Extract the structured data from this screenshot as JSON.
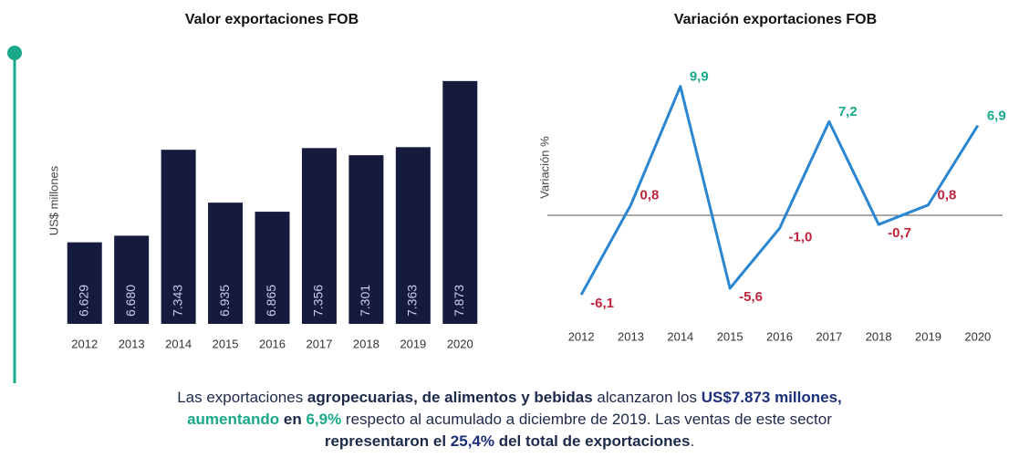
{
  "chart_data": [
    {
      "type": "bar",
      "title": "Valor exportaciones FOB",
      "y_label": "US$ millones",
      "categories": [
        "2012",
        "2013",
        "2014",
        "2015",
        "2016",
        "2017",
        "2018",
        "2019",
        "2020"
      ],
      "values": [
        6629,
        6680,
        7343,
        6935,
        6865,
        7356,
        7301,
        7363,
        7873
      ],
      "value_labels": [
        "6.629",
        "6.680",
        "7.343",
        "6.935",
        "6.865",
        "7.356",
        "7.301",
        "7.363",
        "7.873"
      ],
      "color": "#161a3d",
      "ylim": [
        6000,
        7900
      ]
    },
    {
      "type": "line",
      "title": "Variación exportaciones FOB",
      "y_label": "Variación %",
      "categories": [
        "2012",
        "2013",
        "2014",
        "2015",
        "2016",
        "2017",
        "2018",
        "2019",
        "2020"
      ],
      "values": [
        -6.1,
        0.8,
        9.9,
        -5.6,
        -1.0,
        7.2,
        -0.7,
        0.8,
        6.9
      ],
      "value_labels": [
        "-6,1",
        "0,8",
        "9,9",
        "-5,6",
        "-1,0",
        "7,2",
        "-0,7",
        "0,8",
        "6,9"
      ],
      "label_colors": [
        "#c0243a",
        "#c0243a",
        "#1aa88a",
        "#c0243a",
        "#c0243a",
        "#1aa88a",
        "#c0243a",
        "#c0243a",
        "#1aa88a"
      ],
      "color": "#2a86d0",
      "ylim": [
        -7,
        11
      ]
    }
  ],
  "caption": [
    "Las exportaciones ",
    "agropecuarias, de alimentos y bebidas",
    " alcanzaron los ",
    "US$7.873 millones,",
    "aumentando",
    " en ",
    "6,9%",
    " respecto al acumulado a diciembre de 2019. Las ventas de este sector ",
    "representaron el ",
    "25,4%",
    " del total de exportaciones",
    "."
  ]
}
